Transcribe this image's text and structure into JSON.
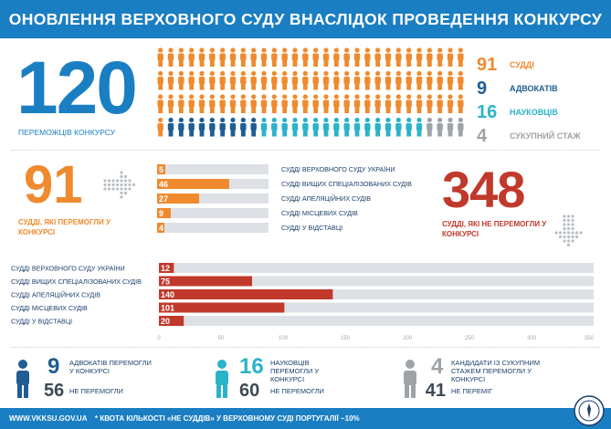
{
  "title": "ОНОВЛЕННЯ ВЕРХОВНОГО СУДУ ВНАСЛІДОК ПРОВЕДЕННЯ КОНКУРСУ",
  "winners": {
    "number": "120",
    "label": "ПЕРЕМОЖЦІВ КОНКУРСУ"
  },
  "breakdown": [
    {
      "count": "91",
      "label": "СУДДІ",
      "color": "#ef8a2e"
    },
    {
      "count": "9",
      "label": "АДВОКАТІВ",
      "color": "#1f5d92"
    },
    {
      "count": "16",
      "label": "НАУКОВЦІВ",
      "color": "#2bb3c8"
    },
    {
      "count": "4",
      "label": "СУКУПНИЙ СТАЖ",
      "color": "#9ea3a8"
    }
  ],
  "judges_won": {
    "number": "91",
    "label": "СУДДІ, ЯКІ ПЕРЕМОГЛИ У КОНКУРСІ",
    "bars": [
      {
        "label": "СУДДІ ВЕРХОВНОГО СУДУ УКРАЇНИ",
        "value": 5
      },
      {
        "label": "СУДДІ ВИЩИХ СПЕЦІАЛІЗОВАНИХ СУДІВ",
        "value": 46
      },
      {
        "label": "СУДДІ АПЕЛЯЦІЙНИХ СУДІВ",
        "value": 27
      },
      {
        "label": "СУДДІ МІСЦЕВИХ СУДІВ",
        "value": 9
      },
      {
        "label": "СУДДІ У ВІДСТАВЦІ",
        "value": 4
      }
    ]
  },
  "judges_lost": {
    "number": "348",
    "label": "СУДДІ, ЯКІ НЕ ПЕРЕМОГЛИ У КОНКУРСІ"
  },
  "chart_data": {
    "type": "bar",
    "orientation": "horizontal",
    "categories": [
      "СУДДІ ВЕРХОВНОГО СУДУ УКРАЇНИ",
      "СУДДІ ВИЩИХ СПЕЦІАЛІЗОВАНИХ СУДІВ",
      "СУДДІ АПЕЛЯЦІЙНИХ СУДІВ",
      "СУДДІ МІСЦЕВИХ СУДІВ",
      "СУДДІ У ВІДСТАВЦІ"
    ],
    "values": [
      12,
      75,
      140,
      101,
      20
    ],
    "xlim": [
      0,
      350
    ],
    "ticks": [
      "0",
      "50",
      "100",
      "150",
      "200",
      "250",
      "300",
      "350"
    ],
    "bar_color": "#c0392b"
  },
  "bottom": [
    {
      "count": "9",
      "label": "АДВОКАТІВ ПЕРЕМОГЛИ У КОНКУРСІ",
      "lost": "56",
      "lost_label": "НЕ ПЕРЕМОГЛИ",
      "color": "#1f5d92"
    },
    {
      "count": "16",
      "label": "НАУКОВЦІВ ПЕРЕМОГЛИ У КОНКУРСІ",
      "lost": "60",
      "lost_label": "НЕ ПЕРЕМОГЛИ",
      "color": "#2bb3c8"
    },
    {
      "count": "4",
      "label": "КАНДИДАТИ ІЗ СУКУПНИМ СТАЖЕМ ПЕРЕМОГЛИ У КОНКУРСІ",
      "lost": "41",
      "lost_label": "НЕ ПЕРЕМІГ",
      "color": "#9ea3a8"
    }
  ],
  "footer": {
    "site": "WWW.VKKSU.GOV.UA",
    "note": "* КВОТА КІЛЬКОСТІ «НЕ СУДДІВ» У ВЕРХОВНОМУ СУДІ ПОРТУГАЛІЇ ~10%"
  },
  "icons": [
    "person-icon",
    "dot-arrow-right-icon",
    "dot-arrow-down-icon",
    "emblem-icon"
  ]
}
